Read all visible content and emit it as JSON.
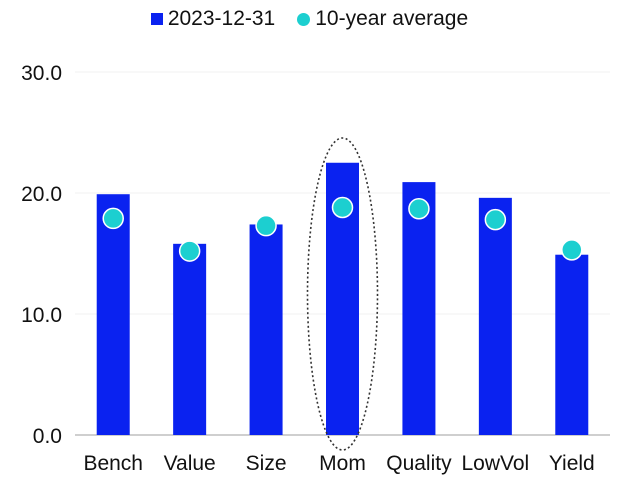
{
  "colors": {
    "bar": "#0a22f0",
    "dot": "#1ccfd0",
    "dot_stroke": "#ffffff",
    "highlight_ring": "#333333"
  },
  "chart_data": {
    "type": "bar",
    "title": "",
    "xlabel": "",
    "ylabel": "",
    "categories": [
      "Bench",
      "Value",
      "Size",
      "Mom",
      "Quality",
      "LowVol",
      "Yield"
    ],
    "series": [
      {
        "name": "2023-12-31",
        "type": "bar",
        "values": [
          19.9,
          15.8,
          17.4,
          22.5,
          20.9,
          19.6,
          14.9
        ]
      },
      {
        "name": "10-year average",
        "type": "scatter",
        "values": [
          17.9,
          15.2,
          17.3,
          18.8,
          18.7,
          17.8,
          15.3
        ]
      }
    ],
    "ylim": [
      0,
      30
    ],
    "yticks": [
      "0.0",
      "10.0",
      "20.0",
      "30.0"
    ],
    "grid": true,
    "legend_position": "top",
    "highlight_category": "Mom"
  }
}
